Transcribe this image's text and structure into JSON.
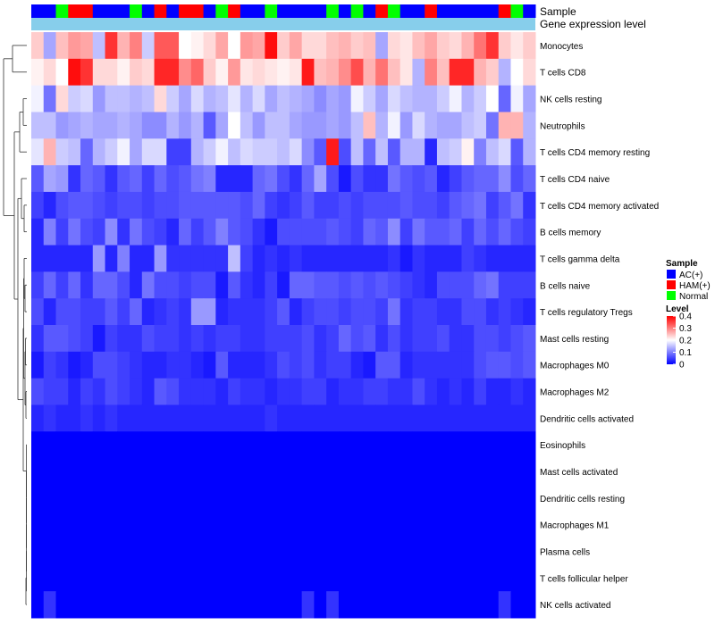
{
  "chart_data": {
    "type": "heatmap",
    "annotation_tracks": [
      "Sample",
      "Gene expression level"
    ],
    "rows": [
      "Monocytes",
      "T cells CD8",
      "NK cells resting",
      "Neutrophils",
      "T cells CD4 memory resting",
      "T cells CD4 naive",
      "T cells CD4 memory activated",
      "B cells memory",
      "T cells gamma delta",
      "B cells naive",
      "T cells regulatory  Tregs",
      "Mast cells resting",
      "Macrophages M0",
      "Macrophages M2",
      "Dendritic cells activated",
      "Eosinophils",
      "Mast cells activated",
      "Dendritic cells resting",
      "Macrophages M1",
      "Plasma cells",
      "T cells follicular helper",
      "NK cells activated"
    ],
    "sample_groups": [
      "AC",
      "AC",
      "Normal",
      "HAM",
      "HAM",
      "AC",
      "AC",
      "AC",
      "Normal",
      "AC",
      "HAM",
      "AC",
      "HAM",
      "HAM",
      "AC",
      "Normal",
      "HAM",
      "AC",
      "AC",
      "Normal",
      "AC",
      "AC",
      "AC",
      "AC",
      "Normal",
      "AC",
      "Normal",
      "AC",
      "HAM",
      "Normal",
      "AC",
      "AC",
      "HAM",
      "AC",
      "AC",
      "AC",
      "AC",
      "AC",
      "HAM",
      "Normal",
      "AC"
    ],
    "values": [
      [
        0.24,
        0.13,
        0.25,
        0.28,
        0.27,
        0.15,
        0.36,
        0.26,
        0.3,
        0.16,
        0.33,
        0.33,
        0.2,
        0.21,
        0.23,
        0.27,
        0.2,
        0.28,
        0.27,
        0.39,
        0.24,
        0.27,
        0.23,
        0.23,
        0.25,
        0.26,
        0.24,
        0.25,
        0.13,
        0.23,
        0.22,
        0.25,
        0.27,
        0.24,
        0.23,
        0.26,
        0.31,
        0.36,
        0.24,
        0.22,
        0.24
      ],
      [
        0.21,
        0.23,
        0.2,
        0.39,
        0.36,
        0.23,
        0.23,
        0.21,
        0.24,
        0.23,
        0.37,
        0.37,
        0.29,
        0.32,
        0.24,
        0.21,
        0.28,
        0.22,
        0.23,
        0.22,
        0.21,
        0.22,
        0.38,
        0.25,
        0.26,
        0.29,
        0.34,
        0.26,
        0.31,
        0.25,
        0.22,
        0.14,
        0.3,
        0.25,
        0.37,
        0.37,
        0.26,
        0.24,
        0.14,
        0.2,
        0.23
      ],
      [
        0.19,
        0.09,
        0.23,
        0.16,
        0.17,
        0.12,
        0.15,
        0.15,
        0.14,
        0.15,
        0.23,
        0.16,
        0.13,
        0.17,
        0.14,
        0.15,
        0.18,
        0.14,
        0.17,
        0.13,
        0.15,
        0.14,
        0.13,
        0.11,
        0.13,
        0.12,
        0.19,
        0.16,
        0.13,
        0.17,
        0.15,
        0.14,
        0.14,
        0.16,
        0.19,
        0.14,
        0.16,
        0.2,
        0.08,
        0.19,
        0.13
      ],
      [
        0.15,
        0.15,
        0.12,
        0.13,
        0.14,
        0.13,
        0.13,
        0.14,
        0.13,
        0.11,
        0.11,
        0.14,
        0.12,
        0.14,
        0.07,
        0.13,
        0.2,
        0.15,
        0.12,
        0.15,
        0.15,
        0.13,
        0.12,
        0.12,
        0.13,
        0.12,
        0.15,
        0.25,
        0.14,
        0.19,
        0.12,
        0.17,
        0.14,
        0.13,
        0.13,
        0.15,
        0.16,
        0.09,
        0.26,
        0.26,
        0.14
      ],
      [
        0.18,
        0.26,
        0.16,
        0.15,
        0.08,
        0.14,
        0.16,
        0.19,
        0.13,
        0.17,
        0.17,
        0.05,
        0.05,
        0.14,
        0.16,
        0.19,
        0.15,
        0.17,
        0.16,
        0.16,
        0.15,
        0.17,
        0.11,
        0.07,
        0.38,
        0.06,
        0.15,
        0.08,
        0.15,
        0.07,
        0.14,
        0.14,
        0.03,
        0.15,
        0.16,
        0.21,
        0.1,
        0.15,
        0.17,
        0.07,
        0.14
      ],
      [
        0.07,
        0.13,
        0.12,
        0.04,
        0.08,
        0.07,
        0.04,
        0.07,
        0.08,
        0.05,
        0.08,
        0.06,
        0.07,
        0.09,
        0.1,
        0.03,
        0.03,
        0.03,
        0.08,
        0.09,
        0.06,
        0.04,
        0.08,
        0.13,
        0.06,
        0.02,
        0.06,
        0.04,
        0.04,
        0.09,
        0.07,
        0.06,
        0.07,
        0.03,
        0.05,
        0.07,
        0.08,
        0.08,
        0.11,
        0.06,
        0.08
      ],
      [
        0.05,
        0.03,
        0.06,
        0.07,
        0.07,
        0.06,
        0.05,
        0.06,
        0.06,
        0.05,
        0.06,
        0.06,
        0.07,
        0.07,
        0.07,
        0.07,
        0.07,
        0.06,
        0.08,
        0.05,
        0.04,
        0.05,
        0.07,
        0.05,
        0.05,
        0.06,
        0.05,
        0.06,
        0.06,
        0.06,
        0.07,
        0.06,
        0.06,
        0.05,
        0.07,
        0.08,
        0.09,
        0.05,
        0.07,
        0.09,
        0.04
      ],
      [
        0.03,
        0.1,
        0.05,
        0.09,
        0.06,
        0.05,
        0.11,
        0.04,
        0.09,
        0.06,
        0.05,
        0.03,
        0.08,
        0.05,
        0.07,
        0.1,
        0.07,
        0.06,
        0.04,
        0.02,
        0.06,
        0.06,
        0.06,
        0.06,
        0.07,
        0.06,
        0.05,
        0.08,
        0.07,
        0.11,
        0.05,
        0.09,
        0.07,
        0.07,
        0.08,
        0.05,
        0.08,
        0.06,
        0.08,
        0.06,
        0.05
      ],
      [
        0.03,
        0.03,
        0.03,
        0.03,
        0.03,
        0.12,
        0.03,
        0.1,
        0.03,
        0.03,
        0.12,
        0.04,
        0.04,
        0.04,
        0.04,
        0.04,
        0.15,
        0.05,
        0.03,
        0.04,
        0.03,
        0.04,
        0.03,
        0.03,
        0.03,
        0.03,
        0.03,
        0.03,
        0.03,
        0.04,
        0.02,
        0.04,
        0.03,
        0.03,
        0.03,
        0.05,
        0.04,
        0.03,
        0.03,
        0.03,
        0.03
      ],
      [
        0.05,
        0.08,
        0.05,
        0.08,
        0.04,
        0.08,
        0.08,
        0.06,
        0.03,
        0.09,
        0.06,
        0.06,
        0.05,
        0.06,
        0.06,
        0.02,
        0.07,
        0.04,
        0.03,
        0.05,
        0.02,
        0.08,
        0.08,
        0.07,
        0.07,
        0.06,
        0.07,
        0.06,
        0.07,
        0.06,
        0.05,
        0.04,
        0.03,
        0.06,
        0.06,
        0.06,
        0.08,
        0.09,
        0.05,
        0.05,
        0.05
      ],
      [
        0.06,
        0.03,
        0.06,
        0.06,
        0.05,
        0.05,
        0.07,
        0.05,
        0.08,
        0.03,
        0.04,
        0.05,
        0.04,
        0.12,
        0.12,
        0.03,
        0.04,
        0.04,
        0.04,
        0.05,
        0.07,
        0.03,
        0.05,
        0.06,
        0.06,
        0.05,
        0.06,
        0.06,
        0.05,
        0.09,
        0.04,
        0.05,
        0.05,
        0.04,
        0.04,
        0.06,
        0.06,
        0.04,
        0.05,
        0.04,
        0.03
      ],
      [
        0.04,
        0.07,
        0.07,
        0.06,
        0.05,
        0.02,
        0.05,
        0.04,
        0.04,
        0.06,
        0.05,
        0.05,
        0.04,
        0.05,
        0.04,
        0.05,
        0.05,
        0.04,
        0.04,
        0.05,
        0.05,
        0.05,
        0.06,
        0.04,
        0.05,
        0.08,
        0.06,
        0.07,
        0.04,
        0.06,
        0.04,
        0.05,
        0.05,
        0.06,
        0.04,
        0.04,
        0.06,
        0.06,
        0.05,
        0.06,
        0.07
      ],
      [
        0.02,
        0.05,
        0.04,
        0.02,
        0.03,
        0.06,
        0.06,
        0.05,
        0.04,
        0.03,
        0.03,
        0.04,
        0.04,
        0.03,
        0.02,
        0.07,
        0.03,
        0.03,
        0.03,
        0.04,
        0.06,
        0.05,
        0.06,
        0.04,
        0.05,
        0.05,
        0.03,
        0.02,
        0.07,
        0.07,
        0.03,
        0.04,
        0.04,
        0.04,
        0.04,
        0.04,
        0.06,
        0.07,
        0.07,
        0.06,
        0.07
      ],
      [
        0.06,
        0.05,
        0.05,
        0.03,
        0.05,
        0.04,
        0.06,
        0.05,
        0.04,
        0.03,
        0.07,
        0.06,
        0.04,
        0.04,
        0.04,
        0.03,
        0.05,
        0.04,
        0.04,
        0.03,
        0.04,
        0.04,
        0.05,
        0.05,
        0.03,
        0.04,
        0.04,
        0.05,
        0.05,
        0.04,
        0.04,
        0.06,
        0.04,
        0.03,
        0.04,
        0.03,
        0.05,
        0.03,
        0.03,
        0.04,
        0.03
      ],
      [
        0.03,
        0.04,
        0.03,
        0.03,
        0.04,
        0.03,
        0.04,
        0.03,
        0.03,
        0.03,
        0.03,
        0.03,
        0.03,
        0.03,
        0.03,
        0.03,
        0.03,
        0.03,
        0.03,
        0.04,
        0.03,
        0.03,
        0.03,
        0.03,
        0.03,
        0.03,
        0.03,
        0.03,
        0.03,
        0.03,
        0.03,
        0.03,
        0.03,
        0.03,
        0.03,
        0.03,
        0.03,
        0.03,
        0.03,
        0.03,
        0.03
      ],
      [
        0,
        0,
        0,
        0,
        0,
        0,
        0,
        0,
        0,
        0,
        0,
        0,
        0,
        0,
        0,
        0,
        0,
        0,
        0,
        0,
        0,
        0,
        0,
        0,
        0,
        0,
        0,
        0,
        0,
        0,
        0,
        0,
        0,
        0,
        0,
        0,
        0,
        0,
        0,
        0,
        0
      ],
      [
        0,
        0,
        0,
        0,
        0,
        0,
        0,
        0,
        0,
        0,
        0,
        0,
        0,
        0,
        0,
        0,
        0,
        0,
        0,
        0,
        0,
        0,
        0,
        0,
        0,
        0,
        0,
        0,
        0,
        0,
        0,
        0,
        0,
        0,
        0,
        0,
        0,
        0,
        0,
        0,
        0
      ],
      [
        0,
        0,
        0,
        0,
        0,
        0,
        0,
        0,
        0,
        0,
        0,
        0,
        0,
        0,
        0,
        0,
        0,
        0,
        0,
        0,
        0,
        0,
        0,
        0,
        0,
        0,
        0,
        0,
        0,
        0,
        0,
        0,
        0,
        0,
        0,
        0,
        0,
        0,
        0,
        0,
        0
      ],
      [
        0,
        0,
        0,
        0,
        0,
        0,
        0,
        0,
        0,
        0,
        0,
        0,
        0,
        0,
        0,
        0,
        0,
        0,
        0,
        0,
        0,
        0,
        0,
        0,
        0,
        0,
        0,
        0,
        0,
        0,
        0,
        0,
        0,
        0,
        0,
        0,
        0,
        0,
        0,
        0,
        0
      ],
      [
        0,
        0,
        0,
        0,
        0,
        0,
        0,
        0,
        0,
        0,
        0,
        0,
        0,
        0,
        0,
        0,
        0,
        0,
        0,
        0,
        0,
        0,
        0,
        0,
        0,
        0,
        0,
        0,
        0,
        0,
        0,
        0,
        0,
        0,
        0,
        0,
        0,
        0,
        0,
        0,
        0
      ],
      [
        0,
        0,
        0,
        0,
        0,
        0,
        0,
        0,
        0,
        0,
        0,
        0,
        0,
        0,
        0,
        0,
        0,
        0,
        0,
        0,
        0,
        0,
        0,
        0,
        0,
        0,
        0,
        0,
        0,
        0,
        0,
        0,
        0,
        0,
        0,
        0,
        0,
        0,
        0,
        0,
        0
      ],
      [
        0,
        0.04,
        0,
        0,
        0,
        0,
        0,
        0,
        0,
        0,
        0,
        0,
        0,
        0,
        0,
        0,
        0,
        0,
        0,
        0,
        0,
        0,
        0.04,
        0,
        0.04,
        0,
        0,
        0,
        0,
        0,
        0,
        0,
        0,
        0,
        0,
        0,
        0,
        0,
        0.04,
        0,
        0
      ]
    ],
    "legend": {
      "sample": {
        "title": "Sample",
        "items": [
          {
            "key": "AC",
            "label": "AC(+)",
            "color": "#0000ff"
          },
          {
            "key": "HAM",
            "label": "HAM(+)",
            "color": "#ff0000"
          },
          {
            "key": "Normal",
            "label": "Normal",
            "color": "#00ff00"
          }
        ]
      },
      "level": {
        "title": "Level",
        "ticks": [
          0,
          0.1,
          0.2,
          0.3,
          0.4
        ],
        "tick_labels": [
          "0",
          "0.1",
          "0.2",
          "0.3",
          "0.4"
        ],
        "colors": {
          "low": "#0000ff",
          "mid": "#ffffff",
          "high": "#ff0000"
        },
        "range": [
          0,
          0.4
        ]
      }
    },
    "expression_track_color": "#87ceeb"
  }
}
